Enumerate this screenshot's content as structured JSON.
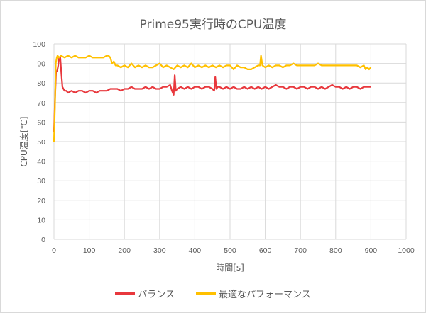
{
  "chart_data": {
    "type": "line",
    "title": "Prime95実行時のCPU温度",
    "xlabel": "時間[s]",
    "ylabel": "CPU温度[℃]",
    "xlim": [
      0,
      1000
    ],
    "ylim": [
      0,
      100
    ],
    "x_ticks": [
      0,
      100,
      200,
      300,
      400,
      500,
      600,
      700,
      800,
      900,
      1000
    ],
    "y_ticks": [
      0,
      10,
      20,
      30,
      40,
      50,
      60,
      70,
      80,
      90,
      100
    ],
    "grid": true,
    "legend_position": "bottom",
    "series": [
      {
        "name": "バランス",
        "color": "#e8383d",
        "x": [
          0,
          3,
          6,
          9,
          12,
          15,
          18,
          21,
          24,
          27,
          30,
          35,
          40,
          50,
          60,
          70,
          80,
          90,
          100,
          110,
          120,
          130,
          140,
          150,
          160,
          170,
          180,
          190,
          200,
          210,
          220,
          230,
          240,
          250,
          260,
          270,
          280,
          290,
          300,
          310,
          320,
          330,
          335,
          340,
          343,
          346,
          350,
          360,
          370,
          380,
          390,
          400,
          410,
          420,
          430,
          440,
          450,
          455,
          458,
          461,
          465,
          470,
          480,
          490,
          500,
          510,
          520,
          530,
          540,
          550,
          560,
          570,
          580,
          590,
          600,
          610,
          620,
          630,
          640,
          650,
          660,
          670,
          680,
          690,
          700,
          710,
          720,
          730,
          740,
          750,
          760,
          770,
          780,
          790,
          800,
          810,
          820,
          830,
          840,
          850,
          860,
          870,
          880,
          890,
          900
        ],
        "values": [
          55,
          72,
          86,
          86,
          89,
          93,
          93,
          85,
          78,
          77,
          76,
          76,
          75,
          76,
          75,
          76,
          76,
          75,
          76,
          76,
          75,
          76,
          76,
          76,
          77,
          77,
          77,
          76,
          77,
          77,
          78,
          77,
          77,
          77,
          78,
          77,
          78,
          77,
          77,
          78,
          78,
          79,
          76,
          74,
          84,
          76,
          77,
          78,
          77,
          78,
          77,
          78,
          78,
          77,
          78,
          78,
          77,
          76,
          83,
          77,
          78,
          78,
          77,
          78,
          77,
          78,
          77,
          77,
          78,
          77,
          78,
          77,
          78,
          77,
          78,
          77,
          78,
          79,
          78,
          78,
          77,
          78,
          78,
          77,
          78,
          78,
          77,
          78,
          78,
          77,
          78,
          77,
          78,
          79,
          78,
          78,
          77,
          78,
          77,
          78,
          78,
          77,
          78,
          78,
          78
        ]
      },
      {
        "name": "最適なパフォーマンス",
        "color": "#ffc000",
        "x": [
          0,
          3,
          5,
          8,
          10,
          15,
          20,
          30,
          40,
          50,
          60,
          70,
          80,
          90,
          100,
          110,
          120,
          130,
          140,
          150,
          155,
          160,
          165,
          170,
          175,
          180,
          190,
          200,
          210,
          220,
          230,
          240,
          250,
          260,
          270,
          280,
          290,
          300,
          310,
          320,
          330,
          340,
          350,
          360,
          370,
          380,
          390,
          400,
          410,
          420,
          430,
          440,
          450,
          460,
          470,
          480,
          490,
          500,
          510,
          520,
          530,
          540,
          550,
          560,
          570,
          580,
          585,
          588,
          592,
          600,
          610,
          620,
          630,
          640,
          650,
          660,
          670,
          680,
          690,
          700,
          710,
          720,
          730,
          740,
          750,
          760,
          770,
          780,
          790,
          800,
          810,
          820,
          830,
          840,
          850,
          860,
          870,
          880,
          885,
          890,
          895,
          900
        ],
        "values": [
          50,
          70,
          90,
          93,
          94,
          93,
          94,
          93,
          94,
          93,
          94,
          93,
          93,
          93,
          94,
          93,
          93,
          93,
          93,
          94,
          94,
          93,
          90,
          91,
          89,
          89,
          88,
          89,
          88,
          90,
          88,
          89,
          88,
          89,
          88,
          88,
          89,
          90,
          88,
          89,
          88,
          87,
          89,
          88,
          89,
          88,
          90,
          88,
          89,
          88,
          89,
          88,
          89,
          88,
          89,
          88,
          89,
          89,
          87,
          89,
          88,
          88,
          87,
          87,
          88,
          89,
          89,
          94,
          89,
          88,
          89,
          88,
          89,
          89,
          88,
          89,
          89,
          90,
          89,
          89,
          89,
          89,
          89,
          89,
          90,
          89,
          89,
          89,
          89,
          89,
          89,
          89,
          89,
          89,
          89,
          89,
          88,
          89,
          87,
          88,
          87,
          88
        ]
      }
    ]
  }
}
